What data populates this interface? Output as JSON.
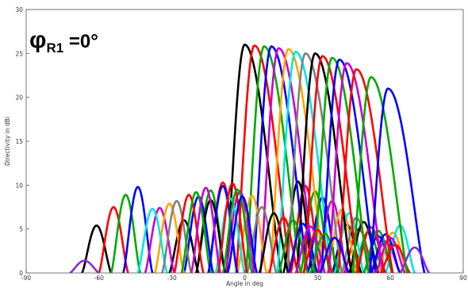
{
  "chart_data": {
    "type": "line",
    "title": "",
    "xlabel": "Angle in deg",
    "ylabel": "Directivity in dBi",
    "xlim": [
      -90,
      90
    ],
    "ylim": [
      0,
      30
    ],
    "x_ticks": [
      -90,
      -60,
      -30,
      0,
      30,
      60,
      90
    ],
    "x_tick_labels": [
      "-90",
      "-60",
      "-30",
      "0",
      "30",
      "60",
      "90"
    ],
    "y_ticks": [
      0,
      5,
      10,
      15,
      20,
      25,
      30
    ],
    "y_tick_labels": [
      "0",
      "5",
      "10",
      "15",
      "20",
      "25",
      "30"
    ],
    "grid": false,
    "legend": "none",
    "annotation": {
      "symbol": "φ",
      "subscript": "R1",
      "text": " =0°"
    },
    "beams": [
      {
        "color": "#000000",
        "main_lobe": {
          "peak_deg": 0,
          "peak_dbi": 26.0
        },
        "side_lobes": [
          {
            "peak_deg": -61,
            "level_dbi": 5.4
          },
          {
            "peak_deg": -25,
            "level_dbi": 6.0
          },
          {
            "peak_deg": 22,
            "level_dbi": 10.4
          },
          {
            "peak_deg": 42,
            "level_dbi": 5.5
          }
        ]
      },
      {
        "color": "#ff0000",
        "main_lobe": {
          "peak_deg": 4,
          "peak_dbi": 25.9
        },
        "side_lobes": [
          {
            "peak_deg": -54,
            "level_dbi": 7.5
          },
          {
            "peak_deg": -9,
            "level_dbi": 10.3
          },
          {
            "peak_deg": 25,
            "level_dbi": 9.9
          },
          {
            "peak_deg": 47,
            "level_dbi": 5.0
          }
        ]
      },
      {
        "color": "#00aa00",
        "main_lobe": {
          "peak_deg": 8,
          "peak_dbi": 25.8
        },
        "side_lobes": [
          {
            "peak_deg": -49,
            "level_dbi": 8.9
          },
          {
            "peak_deg": -14,
            "level_dbi": 9.4
          },
          {
            "peak_deg": 29,
            "level_dbi": 9.3
          },
          {
            "peak_deg": 51,
            "level_dbi": 4.7
          }
        ]
      },
      {
        "color": "#0000ff",
        "main_lobe": {
          "peak_deg": 11,
          "peak_dbi": 25.8
        },
        "side_lobes": [
          {
            "peak_deg": -44,
            "level_dbi": 9.8
          },
          {
            "peak_deg": -19,
            "level_dbi": 8.7
          },
          {
            "peak_deg": 32,
            "level_dbi": 8.6
          },
          {
            "peak_deg": 55,
            "level_dbi": 4.2
          }
        ]
      },
      {
        "color": "#cc00cc",
        "main_lobe": {
          "peak_deg": 14,
          "peak_dbi": 25.6
        },
        "side_lobes": [
          {
            "peak_deg": -35,
            "level_dbi": 7.4
          },
          {
            "peak_deg": -2,
            "level_dbi": 9.3
          },
          {
            "peak_deg": 36,
            "level_dbi": 8.2
          },
          {
            "peak_deg": 58,
            "level_dbi": 3.6
          }
        ]
      },
      {
        "color": "#ffa500",
        "main_lobe": {
          "peak_deg": 18,
          "peak_dbi": 25.5
        },
        "side_lobes": [
          {
            "peak_deg": -31,
            "level_dbi": 7.9
          },
          {
            "peak_deg": 3,
            "level_dbi": 8.8
          },
          {
            "peak_deg": 40,
            "level_dbi": 7.2
          },
          {
            "peak_deg": 61,
            "level_dbi": 4.6
          }
        ]
      },
      {
        "color": "#00e5e5",
        "main_lobe": {
          "peak_deg": 21,
          "peak_dbi": 25.2
        },
        "side_lobes": [
          {
            "peak_deg": -38,
            "level_dbi": 7.3
          },
          {
            "peak_deg": -6,
            "level_dbi": 8.5
          },
          {
            "peak_deg": 43,
            "level_dbi": 6.8
          },
          {
            "peak_deg": 64,
            "level_dbi": 5.4
          }
        ]
      },
      {
        "color": "#808080",
        "main_lobe": {
          "peak_deg": 25,
          "peak_dbi": 25.0
        },
        "side_lobes": [
          {
            "peak_deg": -28,
            "level_dbi": 8.2
          },
          {
            "peak_deg": 7,
            "level_dbi": 7.5
          },
          {
            "peak_deg": 46,
            "level_dbi": 6.3
          }
        ]
      },
      {
        "color": "#000000",
        "main_lobe": {
          "peak_deg": 29,
          "peak_dbi": 25.0
        },
        "side_lobes": [
          {
            "peak_deg": -14,
            "level_dbi": 8.3
          },
          {
            "peak_deg": 12,
            "level_dbi": 6.8
          },
          {
            "peak_deg": 49,
            "level_dbi": 5.8
          }
        ]
      },
      {
        "color": "#ff0000",
        "main_lobe": {
          "peak_deg": 32,
          "peak_dbi": 24.7
        },
        "side_lobes": [
          {
            "peak_deg": -23,
            "level_dbi": 8.9
          },
          {
            "peak_deg": 16,
            "level_dbi": 6.3
          },
          {
            "peak_deg": 52,
            "level_dbi": 5.2
          }
        ]
      },
      {
        "color": "#00aa00",
        "main_lobe": {
          "peak_deg": 36,
          "peak_dbi": 24.5
        },
        "side_lobes": [
          {
            "peak_deg": -20,
            "level_dbi": 9.2
          },
          {
            "peak_deg": 20,
            "level_dbi": 6.0
          },
          {
            "peak_deg": 55,
            "level_dbi": 4.8
          }
        ]
      },
      {
        "color": "#0000ff",
        "main_lobe": {
          "peak_deg": 39,
          "peak_dbi": 24.3
        },
        "side_lobes": [
          {
            "peak_deg": -9,
            "level_dbi": 9.9
          },
          {
            "peak_deg": 24,
            "level_dbi": 5.6
          },
          {
            "peak_deg": 58,
            "level_dbi": 4.4
          }
        ]
      },
      {
        "color": "#cc00cc",
        "main_lobe": {
          "peak_deg": 42,
          "peak_dbi": 23.9
        },
        "side_lobes": [
          {
            "peak_deg": -16,
            "level_dbi": 9.7
          },
          {
            "peak_deg": 27,
            "level_dbi": 5.3
          },
          {
            "peak_deg": 60,
            "level_dbi": 4.0
          }
        ]
      },
      {
        "color": "#ff0000",
        "main_lobe": {
          "peak_deg": 46,
          "peak_dbi": 23.2
        },
        "side_lobes": [
          {
            "peak_deg": -5,
            "level_dbi": 10.2
          },
          {
            "peak_deg": 30,
            "level_dbi": 4.9
          },
          {
            "peak_deg": 62,
            "level_dbi": 3.2
          }
        ]
      },
      {
        "color": "#00aa00",
        "main_lobe": {
          "peak_deg": 52,
          "peak_dbi": 22.3
        },
        "side_lobes": [
          {
            "peak_deg": -3,
            "level_dbi": 9.5
          },
          {
            "peak_deg": 33,
            "level_dbi": 4.5
          }
        ]
      },
      {
        "color": "#0000ff",
        "main_lobe": {
          "peak_deg": 59,
          "peak_dbi": 21.0
        },
        "side_lobes": [
          {
            "peak_deg": -1,
            "level_dbi": 8.7
          },
          {
            "peak_deg": 37,
            "level_dbi": 4.0
          }
        ]
      },
      {
        "color": "#8a2be2",
        "main_lobe": {
          "peak_deg": 78,
          "peak_dbi": 0.0
        },
        "side_lobes": [
          {
            "peak_deg": -66,
            "level_dbi": 1.4
          },
          {
            "peak_deg": 70,
            "level_dbi": 2.9
          }
        ]
      }
    ]
  }
}
